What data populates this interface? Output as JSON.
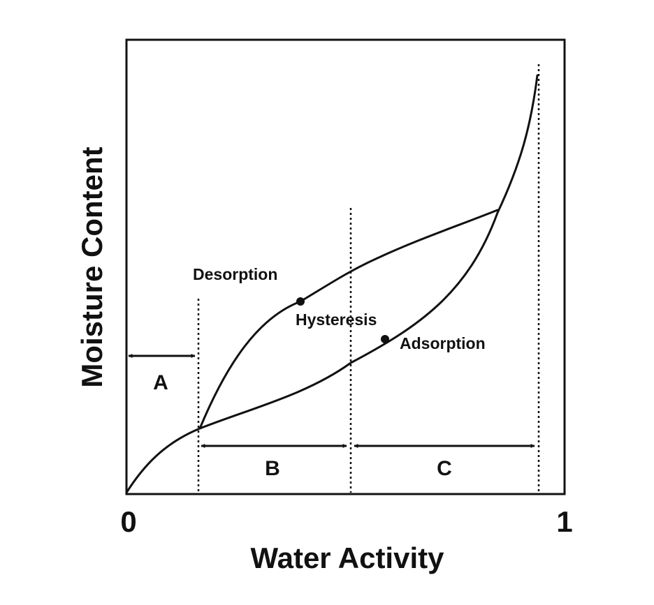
{
  "axes": {
    "x_label": "Water Activity",
    "y_label": "Moisture Content",
    "x_min_tick": "0",
    "x_max_tick": "1"
  },
  "curves": {
    "desorption": "Desorption",
    "adsorption": "Adsorption",
    "hysteresis": "Hysteresis"
  },
  "regions": {
    "a": "A",
    "b": "B",
    "c": "C"
  }
}
